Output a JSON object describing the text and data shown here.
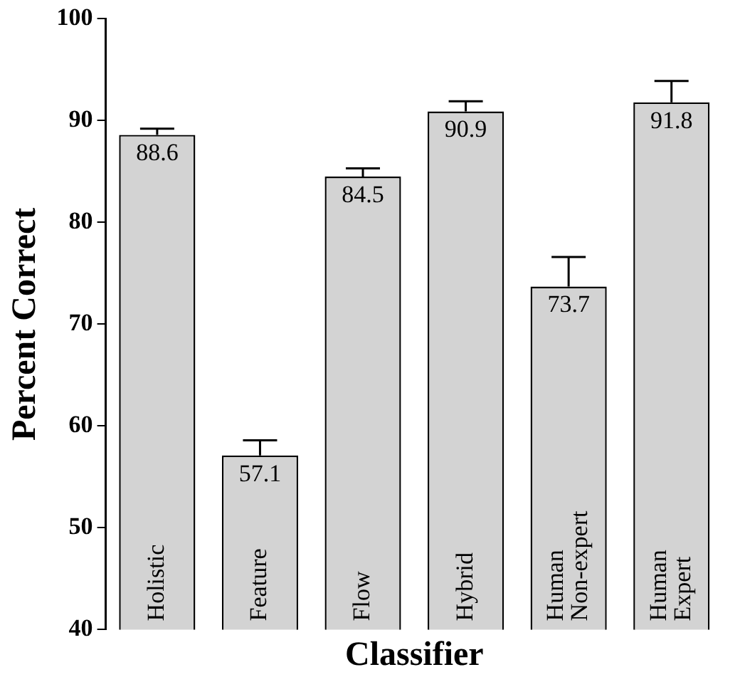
{
  "chart_data": {
    "type": "bar",
    "xlabel": "Classifier",
    "ylabel": "Percent Correct",
    "categories": [
      "Holistic",
      "Feature",
      "Flow",
      "Hybrid",
      "Human Non-expert",
      "Human Expert"
    ],
    "values": [
      88.6,
      57.1,
      84.5,
      90.9,
      73.7,
      91.8
    ],
    "errors": [
      [
        88.6,
        89.2
      ],
      [
        57.1,
        58.6
      ],
      [
        84.5,
        85.3
      ],
      [
        90.9,
        91.9
      ],
      [
        73.7,
        76.6
      ],
      [
        91.8,
        93.9
      ]
    ],
    "color": "#d3d3d3",
    "data_labels": true,
    "tick_labels": "y",
    "grid": false,
    "legend": false,
    "ylim": [
      40,
      100
    ],
    "yticks": [
      40,
      50,
      60,
      70,
      80,
      90,
      100
    ]
  }
}
